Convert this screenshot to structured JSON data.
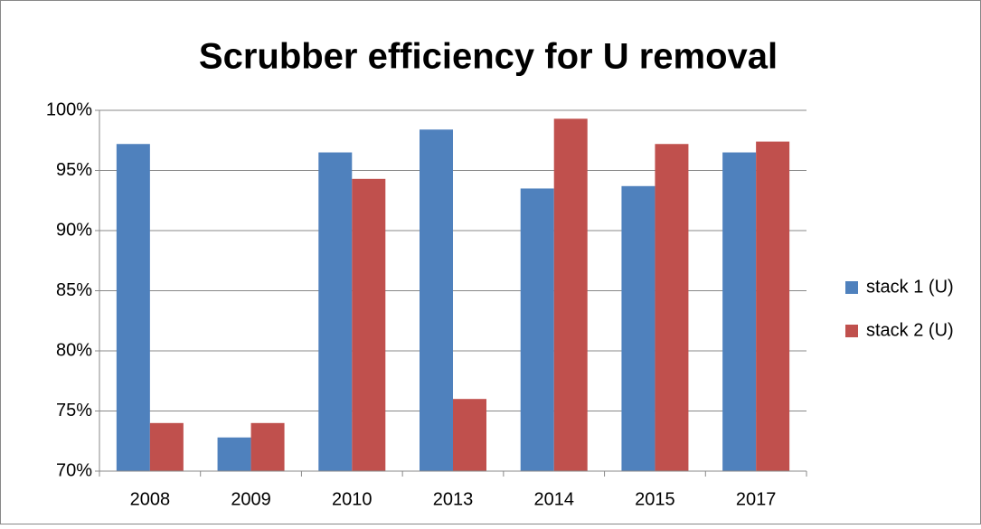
{
  "chart_data": {
    "type": "bar",
    "title": "Scrubber efficiency for U removal",
    "categories": [
      "2008",
      "2009",
      "2010",
      "2013",
      "2014",
      "2015",
      "2017"
    ],
    "series": [
      {
        "name": "stack 1 (U)",
        "color": "#4f81bd",
        "values": [
          97.2,
          72.8,
          96.5,
          98.4,
          93.5,
          93.7,
          96.5
        ]
      },
      {
        "name": "stack 2 (U)",
        "color": "#c0504d",
        "values": [
          74.0,
          74.0,
          94.3,
          76.0,
          99.3,
          97.2,
          97.4
        ]
      }
    ],
    "ylim": [
      70,
      100
    ],
    "yticks": [
      {
        "value": 70,
        "label": "70%"
      },
      {
        "value": 75,
        "label": "75%"
      },
      {
        "value": 80,
        "label": "80%"
      },
      {
        "value": 85,
        "label": "85%"
      },
      {
        "value": 90,
        "label": "90%"
      },
      {
        "value": 95,
        "label": "95%"
      },
      {
        "value": 100,
        "label": "100%"
      }
    ],
    "grid": true,
    "legend": "right"
  }
}
